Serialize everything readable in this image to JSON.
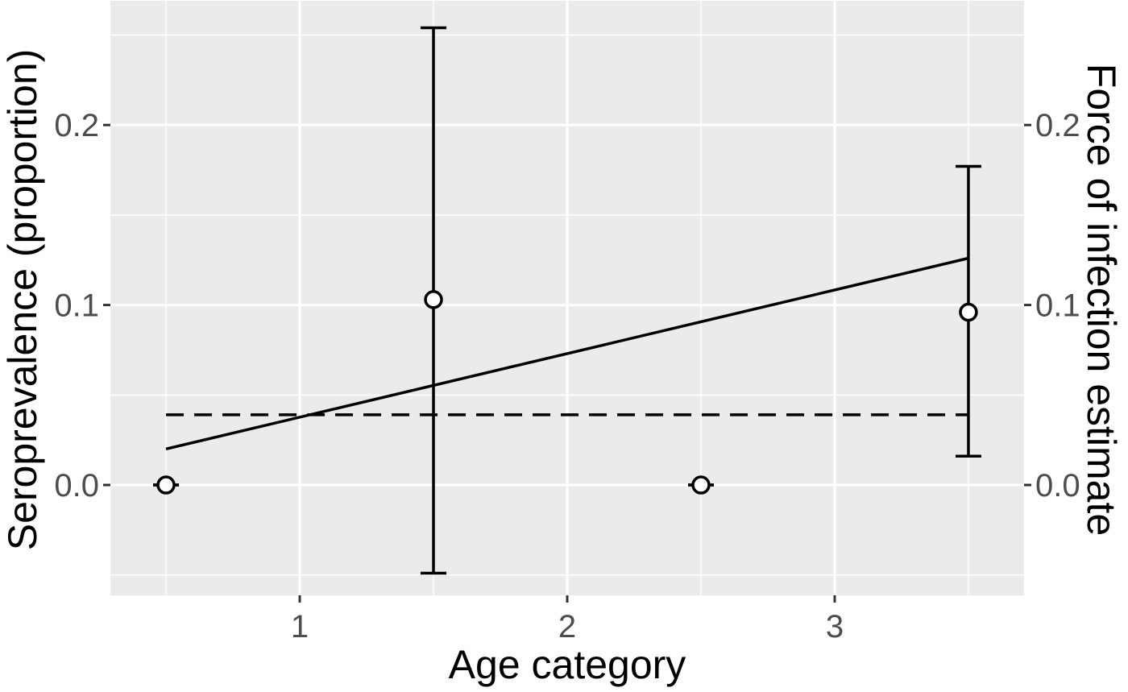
{
  "chart_data": {
    "type": "scatter",
    "title": "",
    "xlabel": "Age category",
    "ylabel_left": "Seroprevalence (proportion)",
    "ylabel_right": "Force of infection estimate",
    "xlim": [
      0.292,
      3.708
    ],
    "ylim": [
      -0.0613,
      0.269
    ],
    "x_ticks": {
      "values": [
        1,
        2,
        3
      ],
      "labels": [
        "1",
        "2",
        "3"
      ]
    },
    "y_ticks": {
      "values": [
        0.0,
        0.1,
        0.2
      ],
      "labels": [
        "0.0",
        "0.1",
        "0.2"
      ]
    },
    "x_minor": [
      0.5,
      1.5,
      2.5,
      3.5
    ],
    "y_minor": [
      -0.05,
      0.05,
      0.15,
      0.25
    ],
    "grid": true,
    "legend": "none",
    "series": [
      {
        "name": "seroprevalence-by-age",
        "type": "point-errorbar",
        "points": [
          {
            "x": 0.5,
            "y": 0.0,
            "ymin": 0.0,
            "ymax": 0.0
          },
          {
            "x": 1.5,
            "y": 0.103,
            "ymin": -0.049,
            "ymax": 0.254
          },
          {
            "x": 2.5,
            "y": 0.0,
            "ymin": 0.0,
            "ymax": 0.0
          },
          {
            "x": 3.5,
            "y": 0.096,
            "ymin": 0.016,
            "ymax": 0.177
          }
        ]
      },
      {
        "name": "force-of-infection-fit",
        "type": "line",
        "style": "solid",
        "points": [
          {
            "x": 0.5,
            "y": 0.02
          },
          {
            "x": 3.5,
            "y": 0.126
          }
        ]
      },
      {
        "name": "overall-force-of-infection-estimate",
        "type": "line",
        "style": "dashed",
        "points": [
          {
            "x": 0.5,
            "y": 0.039
          },
          {
            "x": 3.5,
            "y": 0.039
          }
        ]
      }
    ],
    "colors": {
      "panel_background": "#EBEBEB",
      "grid": "#FFFFFF",
      "data_stroke": "#000000",
      "point_fill": "#FFFFFF",
      "tick_mark": "#333333",
      "tick_label": "#4D4D4D",
      "axis_title": "#000000"
    }
  }
}
